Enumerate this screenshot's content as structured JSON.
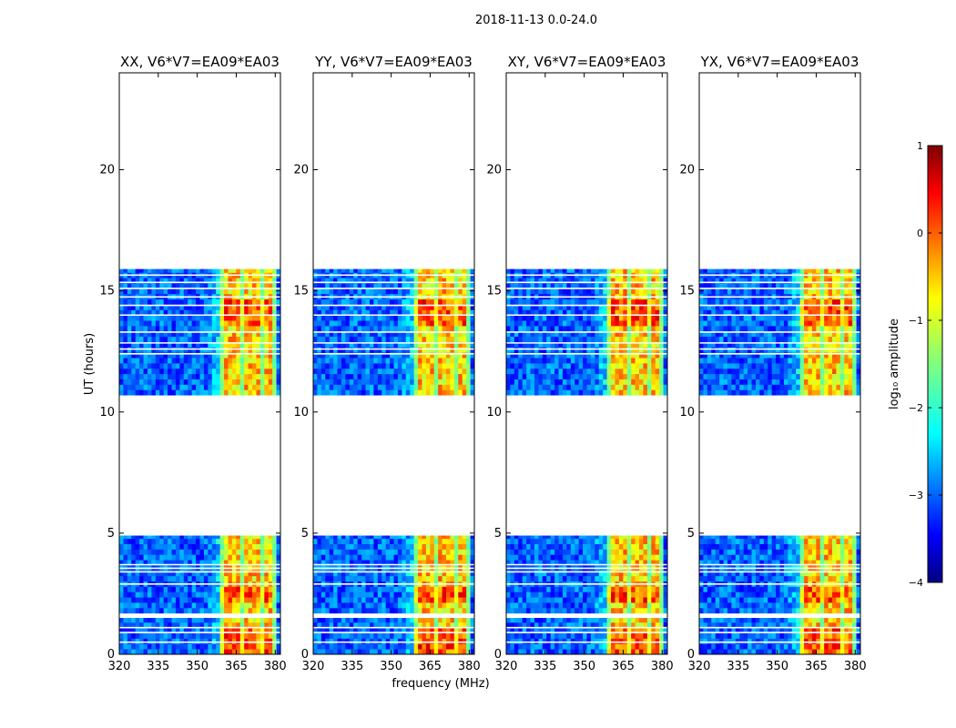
{
  "suptitle": "2018-11-13 0.0-24.0",
  "xlabel": "frequency (MHz)",
  "ylabel": "UT (hours)",
  "colorbar": {
    "label": "log₁₀ amplitude",
    "range": [
      -4,
      1
    ],
    "ticks": [
      1,
      0,
      -1,
      -2,
      -3,
      -4
    ],
    "tick_labels": [
      "1",
      "0",
      "−1",
      "−2",
      "−3",
      "−4"
    ],
    "colormap": [
      "#00007f",
      "#0000ff",
      "#007fff",
      "#00ffff",
      "#7fff7f",
      "#ffff00",
      "#ff7f00",
      "#ff0000",
      "#7f0000"
    ]
  },
  "chart_data": [
    {
      "type": "heatmap",
      "title": "XX, V6*V7=EA09*EA03",
      "xlim": [
        320,
        382
      ],
      "ylim": [
        0,
        24
      ],
      "xticks": [
        320,
        335,
        350,
        365,
        380
      ],
      "xtick_labels": [
        "320",
        "335",
        "350",
        "365",
        "380"
      ],
      "yticks": [
        0,
        5,
        10,
        15,
        20
      ],
      "ytick_labels": [
        "0",
        "5",
        "10",
        "15",
        "20"
      ],
      "data_blocks": [
        [
          0,
          1.5
        ],
        [
          1.7,
          4.9
        ],
        [
          10.7,
          15.9
        ]
      ],
      "rfi_band_mhz": [
        359.5,
        378.5
      ],
      "gaps_ut": [
        0.5,
        0.9,
        1.1,
        2.9,
        3.4,
        3.55,
        3.7,
        12.4,
        12.6,
        12.85,
        13.3,
        14.0,
        14.4,
        14.75,
        15.1,
        15.35,
        15.65
      ]
    },
    {
      "type": "heatmap",
      "title": "YY, V6*V7=EA09*EA03",
      "xlim": [
        320,
        382
      ],
      "ylim": [
        0,
        24
      ],
      "xticks": [
        320,
        335,
        350,
        365,
        380
      ],
      "xtick_labels": [
        "320",
        "335",
        "350",
        "365",
        "380"
      ],
      "yticks": [
        0,
        5,
        10,
        15,
        20
      ],
      "ytick_labels": [
        "0",
        "5",
        "10",
        "15",
        "20"
      ],
      "data_blocks": [
        [
          0,
          1.5
        ],
        [
          1.7,
          4.9
        ],
        [
          10.7,
          15.9
        ]
      ],
      "rfi_band_mhz": [
        359.5,
        378.5
      ],
      "gaps_ut": [
        0.5,
        0.9,
        1.1,
        2.9,
        3.4,
        3.55,
        3.7,
        12.4,
        12.6,
        12.85,
        13.3,
        14.0,
        14.4,
        14.75,
        15.1,
        15.35,
        15.65
      ]
    },
    {
      "type": "heatmap",
      "title": "XY, V6*V7=EA09*EA03",
      "xlim": [
        320,
        382
      ],
      "ylim": [
        0,
        24
      ],
      "xticks": [
        320,
        335,
        350,
        365,
        380
      ],
      "xtick_labels": [
        "320",
        "335",
        "350",
        "365",
        "380"
      ],
      "yticks": [
        0,
        5,
        10,
        15,
        20
      ],
      "ytick_labels": [
        "0",
        "5",
        "10",
        "15",
        "20"
      ],
      "data_blocks": [
        [
          0,
          1.5
        ],
        [
          1.7,
          4.9
        ],
        [
          10.7,
          15.9
        ]
      ],
      "rfi_band_mhz": [
        359.5,
        378.5
      ],
      "gaps_ut": [
        0.5,
        0.9,
        1.1,
        2.9,
        3.4,
        3.55,
        3.7,
        12.4,
        12.6,
        12.85,
        13.3,
        14.0,
        14.4,
        14.75,
        15.1,
        15.35,
        15.65
      ]
    },
    {
      "type": "heatmap",
      "title": "YX, V6*V7=EA09*EA03",
      "xlim": [
        320,
        382
      ],
      "ylim": [
        0,
        24
      ],
      "xticks": [
        320,
        335,
        350,
        365,
        380
      ],
      "xtick_labels": [
        "320",
        "335",
        "350",
        "365",
        "380"
      ],
      "yticks": [
        0,
        5,
        10,
        15,
        20
      ],
      "ytick_labels": [
        "0",
        "5",
        "10",
        "15",
        "20"
      ],
      "data_blocks": [
        [
          0,
          1.5
        ],
        [
          1.7,
          4.9
        ],
        [
          10.7,
          15.9
        ]
      ],
      "rfi_band_mhz": [
        359.5,
        378.5
      ],
      "gaps_ut": [
        0.5,
        0.9,
        1.1,
        2.9,
        3.4,
        3.55,
        3.7,
        12.4,
        12.6,
        12.85,
        13.3,
        14.0,
        14.4,
        14.75,
        15.1,
        15.35,
        15.65
      ]
    }
  ]
}
